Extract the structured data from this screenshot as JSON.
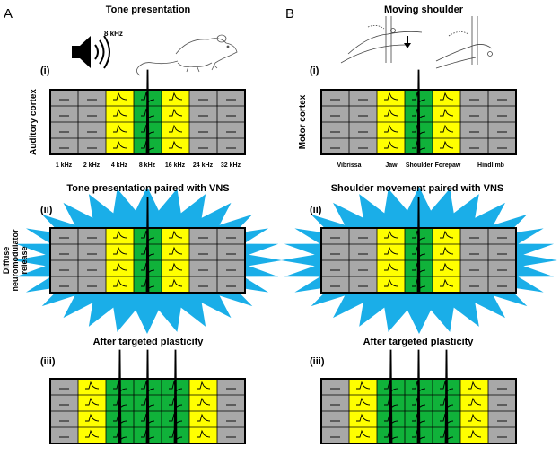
{
  "colors": {
    "gray": "#a8a8a8",
    "yellow": "#ffff00",
    "green": "#10b23a",
    "burst": "#1aaee8",
    "ink": "#000000"
  },
  "panelA": {
    "letter": "A",
    "title": "Tone presentation",
    "speaker_freq": "8 kHz",
    "roman_i": "(i)",
    "side_label": "Auditory cortex",
    "freq_labels": [
      "1 kHz",
      "2 kHz",
      "4 kHz",
      "8 kHz",
      "16 kHz",
      "24 kHz",
      "32 kHz"
    ],
    "vns_title": "Tone presentation paired with VNS",
    "roman_ii": "(ii)",
    "release_label": [
      "Diffuse",
      "neuromodulator",
      "release"
    ],
    "after_title": "After targeted plasticity",
    "roman_iii": "(iii)",
    "grid_i": [
      "gray",
      "gray",
      "yellow",
      "green",
      "yellow",
      "gray",
      "gray"
    ],
    "grid_ii": [
      "gray",
      "gray",
      "yellow",
      "green",
      "yellow",
      "gray",
      "gray"
    ],
    "grid_iii": [
      "gray",
      "yellow",
      "green",
      "green",
      "green",
      "yellow",
      "gray"
    ]
  },
  "panelB": {
    "letter": "B",
    "title": "Moving shoulder",
    "roman_i": "(i)",
    "side_label": "Motor cortex",
    "region_labels": [
      "Vibrissa",
      "Jaw",
      "Shoulder",
      "Forepaw",
      "Hindlimb"
    ],
    "vns_title": "Shoulder movement paired with VNS",
    "roman_ii": "(ii)",
    "after_title": "After targeted plasticity",
    "roman_iii": "(iii)",
    "grid_i": [
      "gray",
      "gray",
      "yellow",
      "green",
      "yellow",
      "gray",
      "gray"
    ],
    "grid_ii": [
      "gray",
      "gray",
      "yellow",
      "green",
      "yellow",
      "gray",
      "gray"
    ],
    "grid_iii": [
      "gray",
      "yellow",
      "green",
      "green",
      "green",
      "yellow",
      "gray"
    ]
  }
}
